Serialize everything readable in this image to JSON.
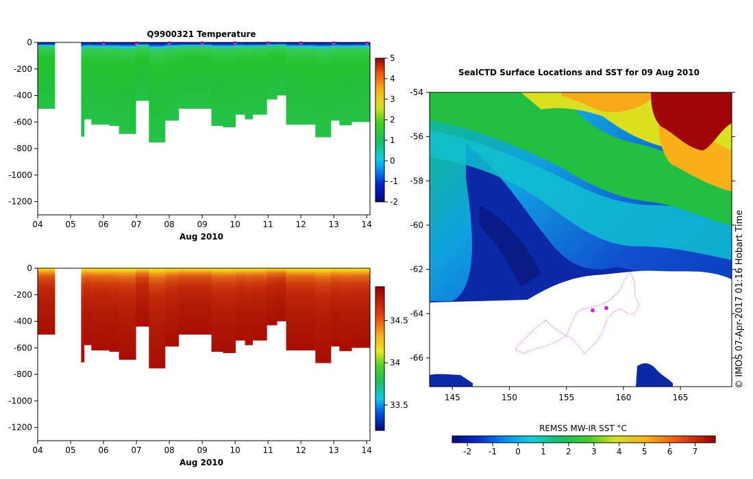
{
  "chart_data": [
    {
      "type": "heatmap",
      "title": "Q9900321  Temperature",
      "xlabel": "Aug 2010",
      "x_ticks": [
        "04",
        "05",
        "06",
        "07",
        "08",
        "09",
        "10",
        "11",
        "12",
        "13",
        "14"
      ],
      "xlim": [
        4,
        14.1
      ],
      "ylim": [
        -1300,
        0
      ],
      "y_ticks": [
        0,
        -200,
        -400,
        -600,
        -800,
        -1000,
        -1200
      ],
      "colorbar": {
        "min": -2,
        "max": 5,
        "ticks": [
          5,
          4,
          3,
          2,
          1,
          0,
          -1,
          -2
        ]
      },
      "profile_times": [
        4.27,
        5.41,
        5.63,
        6.18,
        6.47,
        6.98,
        7.38,
        7.87,
        8.28,
        8.68,
        9.28,
        9.63,
        10.01,
        10.3,
        10.53,
        10.96,
        11.27,
        11.55,
        11.93,
        12.44,
        12.91,
        13.17,
        13.54,
        13.89
      ],
      "profile_max_depths": [
        -500,
        -710,
        -580,
        -620,
        -630,
        -690,
        -440,
        -755,
        -590,
        -500,
        -500,
        -630,
        -640,
        -545,
        -580,
        -545,
        -430,
        -400,
        -620,
        -620,
        -715,
        -590,
        -625,
        -600
      ],
      "markers": "surface locations"
    },
    {
      "type": "heatmap",
      "title": "",
      "xlabel": "Aug 2010",
      "x_ticks": [
        "04",
        "05",
        "06",
        "07",
        "08",
        "09",
        "10",
        "11",
        "12",
        "13",
        "14"
      ],
      "xlim": [
        4,
        14.1
      ],
      "ylim": [
        -1300,
        0
      ],
      "y_ticks": [
        0,
        -200,
        -400,
        -600,
        -800,
        -1000,
        -1200
      ],
      "colorbar": {
        "min": 33.2,
        "max": 34.9,
        "ticks": [
          34.5,
          34,
          33.5
        ]
      },
      "profile_times": [
        4.27,
        5.41,
        5.63,
        6.18,
        6.47,
        6.98,
        7.38,
        7.87,
        8.28,
        8.68,
        9.28,
        9.63,
        10.01,
        10.3,
        10.53,
        10.96,
        11.27,
        11.55,
        11.93,
        12.44,
        12.91,
        13.17,
        13.54,
        13.89
      ],
      "profile_max_depths": [
        -500,
        -710,
        -580,
        -620,
        -630,
        -690,
        -440,
        -755,
        -590,
        -500,
        -500,
        -630,
        -640,
        -545,
        -580,
        -545,
        -430,
        -400,
        -620,
        -620,
        -715,
        -590,
        -625,
        -600
      ]
    },
    {
      "type": "heatmap",
      "title": "SealCTD Surface Locations and SST for 09 Aug 2010",
      "xlabel": "",
      "ylabel": "",
      "xlim": [
        143,
        169.5
      ],
      "ylim": [
        -67.3,
        -54
      ],
      "x_ticks": [
        145,
        150,
        155,
        160,
        165
      ],
      "y_ticks": [
        -54,
        -56,
        -58,
        -60,
        -62,
        -64,
        -66
      ],
      "colorbar": {
        "label": "REMSS MW-IR SST °C",
        "min": -2.6,
        "max": 7.8,
        "ticks": [
          -2,
          -1,
          0,
          1,
          2,
          3,
          4,
          5,
          6,
          7
        ]
      },
      "stamp": "© IMOS 07-Apr-2017 01:16 Hobart Time",
      "track": "seal track, surface locations (magenta)"
    }
  ]
}
